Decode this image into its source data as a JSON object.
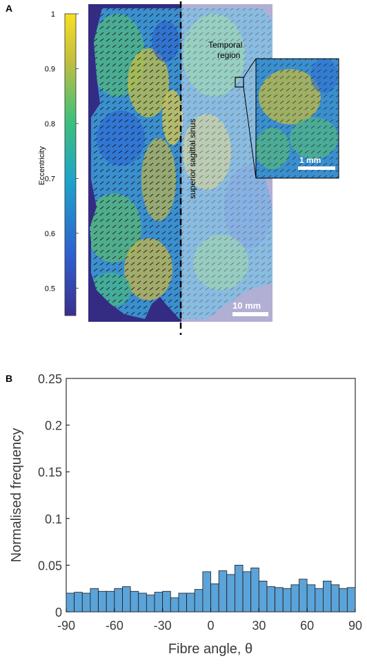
{
  "panels": {
    "a_label": "A",
    "b_label": "B"
  },
  "panel_a": {
    "colorbar_label": "Eccentricity",
    "colorbar_ticks": [
      "1",
      "0.9",
      "0.8",
      "0.7",
      "0.6",
      "0.5"
    ],
    "colorbar_range": [
      0.45,
      1.0
    ],
    "midline_label": "superior sagittal sinus",
    "inset_label": "Temporal region",
    "inset_label_line1": "Temporal",
    "inset_label_line2": "region",
    "inset_scalebar": "1 mm",
    "main_scalebar": "10 mm",
    "colors": {
      "low": "#3b2f8f",
      "mid": "#21a0b5",
      "high": "#f5e025",
      "background": "#332c82"
    }
  },
  "chart_data": {
    "type": "bar",
    "xlabel": "Fibre angle, θ",
    "ylabel": "Normalised frequency",
    "xlim": [
      -90,
      90
    ],
    "ylim": [
      0,
      0.25
    ],
    "xticks": [
      "-90",
      "-60",
      "-30",
      "0",
      "30",
      "60",
      "90"
    ],
    "yticks": [
      "0",
      "0.05",
      "0.1",
      "0.15",
      "0.2",
      "0.25"
    ],
    "bin_width": 5,
    "x": [
      -87.5,
      -82.5,
      -77.5,
      -72.5,
      -67.5,
      -62.5,
      -57.5,
      -52.5,
      -47.5,
      -42.5,
      -37.5,
      -32.5,
      -27.5,
      -22.5,
      -17.5,
      -12.5,
      -7.5,
      -2.5,
      2.5,
      7.5,
      12.5,
      17.5,
      22.5,
      27.5,
      32.5,
      37.5,
      42.5,
      47.5,
      52.5,
      57.5,
      62.5,
      67.5,
      72.5,
      77.5,
      82.5,
      87.5
    ],
    "values": [
      0.02,
      0.021,
      0.02,
      0.025,
      0.022,
      0.022,
      0.025,
      0.027,
      0.022,
      0.02,
      0.018,
      0.021,
      0.022,
      0.015,
      0.02,
      0.02,
      0.024,
      0.043,
      0.03,
      0.044,
      0.04,
      0.05,
      0.043,
      0.047,
      0.033,
      0.027,
      0.026,
      0.025,
      0.029,
      0.035,
      0.029,
      0.025,
      0.033,
      0.029,
      0.025,
      0.026
    ],
    "bar_color": "#5ba3d8",
    "edge_color": "#1a1a1a",
    "grid": false
  }
}
